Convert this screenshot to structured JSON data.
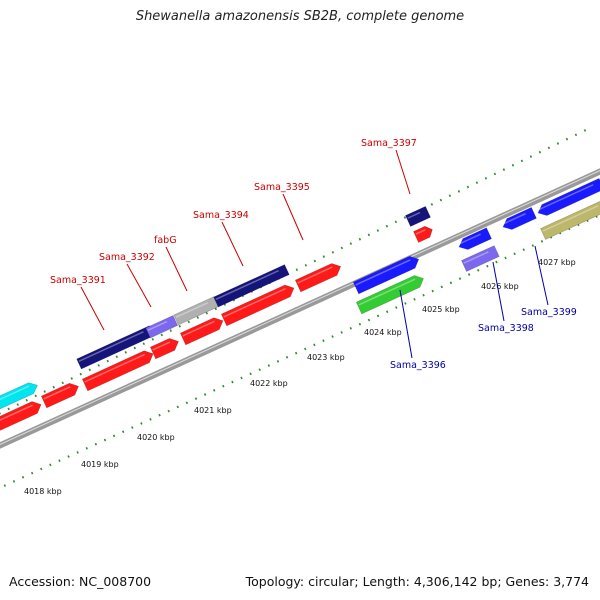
{
  "title": "Shewanella amazonensis SB2B, complete genome",
  "footer": {
    "accession": "Accession: NC_008700",
    "summary": "Topology: circular; Length: 4,306,142 bp; Genes: 3,774"
  },
  "scale_labels": [
    "4018 kbp",
    "4019 kbp",
    "4020 kbp",
    "4021 kbp",
    "4022 kbp",
    "4023 kbp",
    "4024 kbp",
    "4025 kbp",
    "4026 kbp",
    "4027 kbp"
  ],
  "gene_labels": {
    "forward": [
      "Sama_3391",
      "Sama_3392",
      "fabG",
      "Sama_3394",
      "Sama_3395",
      "Sama_3397"
    ],
    "reverse": [
      "Sama_3396",
      "Sama_3398",
      "Sama_3399"
    ]
  },
  "colors": {
    "forward_label": "#cc0000",
    "reverse_label": "#0000aa",
    "red": "#ff1a1a",
    "blue": "#1a1aff",
    "navy": "#14147a",
    "lavender": "#7b68ee",
    "cyan": "#00e5ee",
    "green": "#33cc33",
    "khaki": "#bdb76b",
    "gray": "#b0b0b0",
    "tick": "#2e8b2e",
    "backbone": "#888888"
  }
}
